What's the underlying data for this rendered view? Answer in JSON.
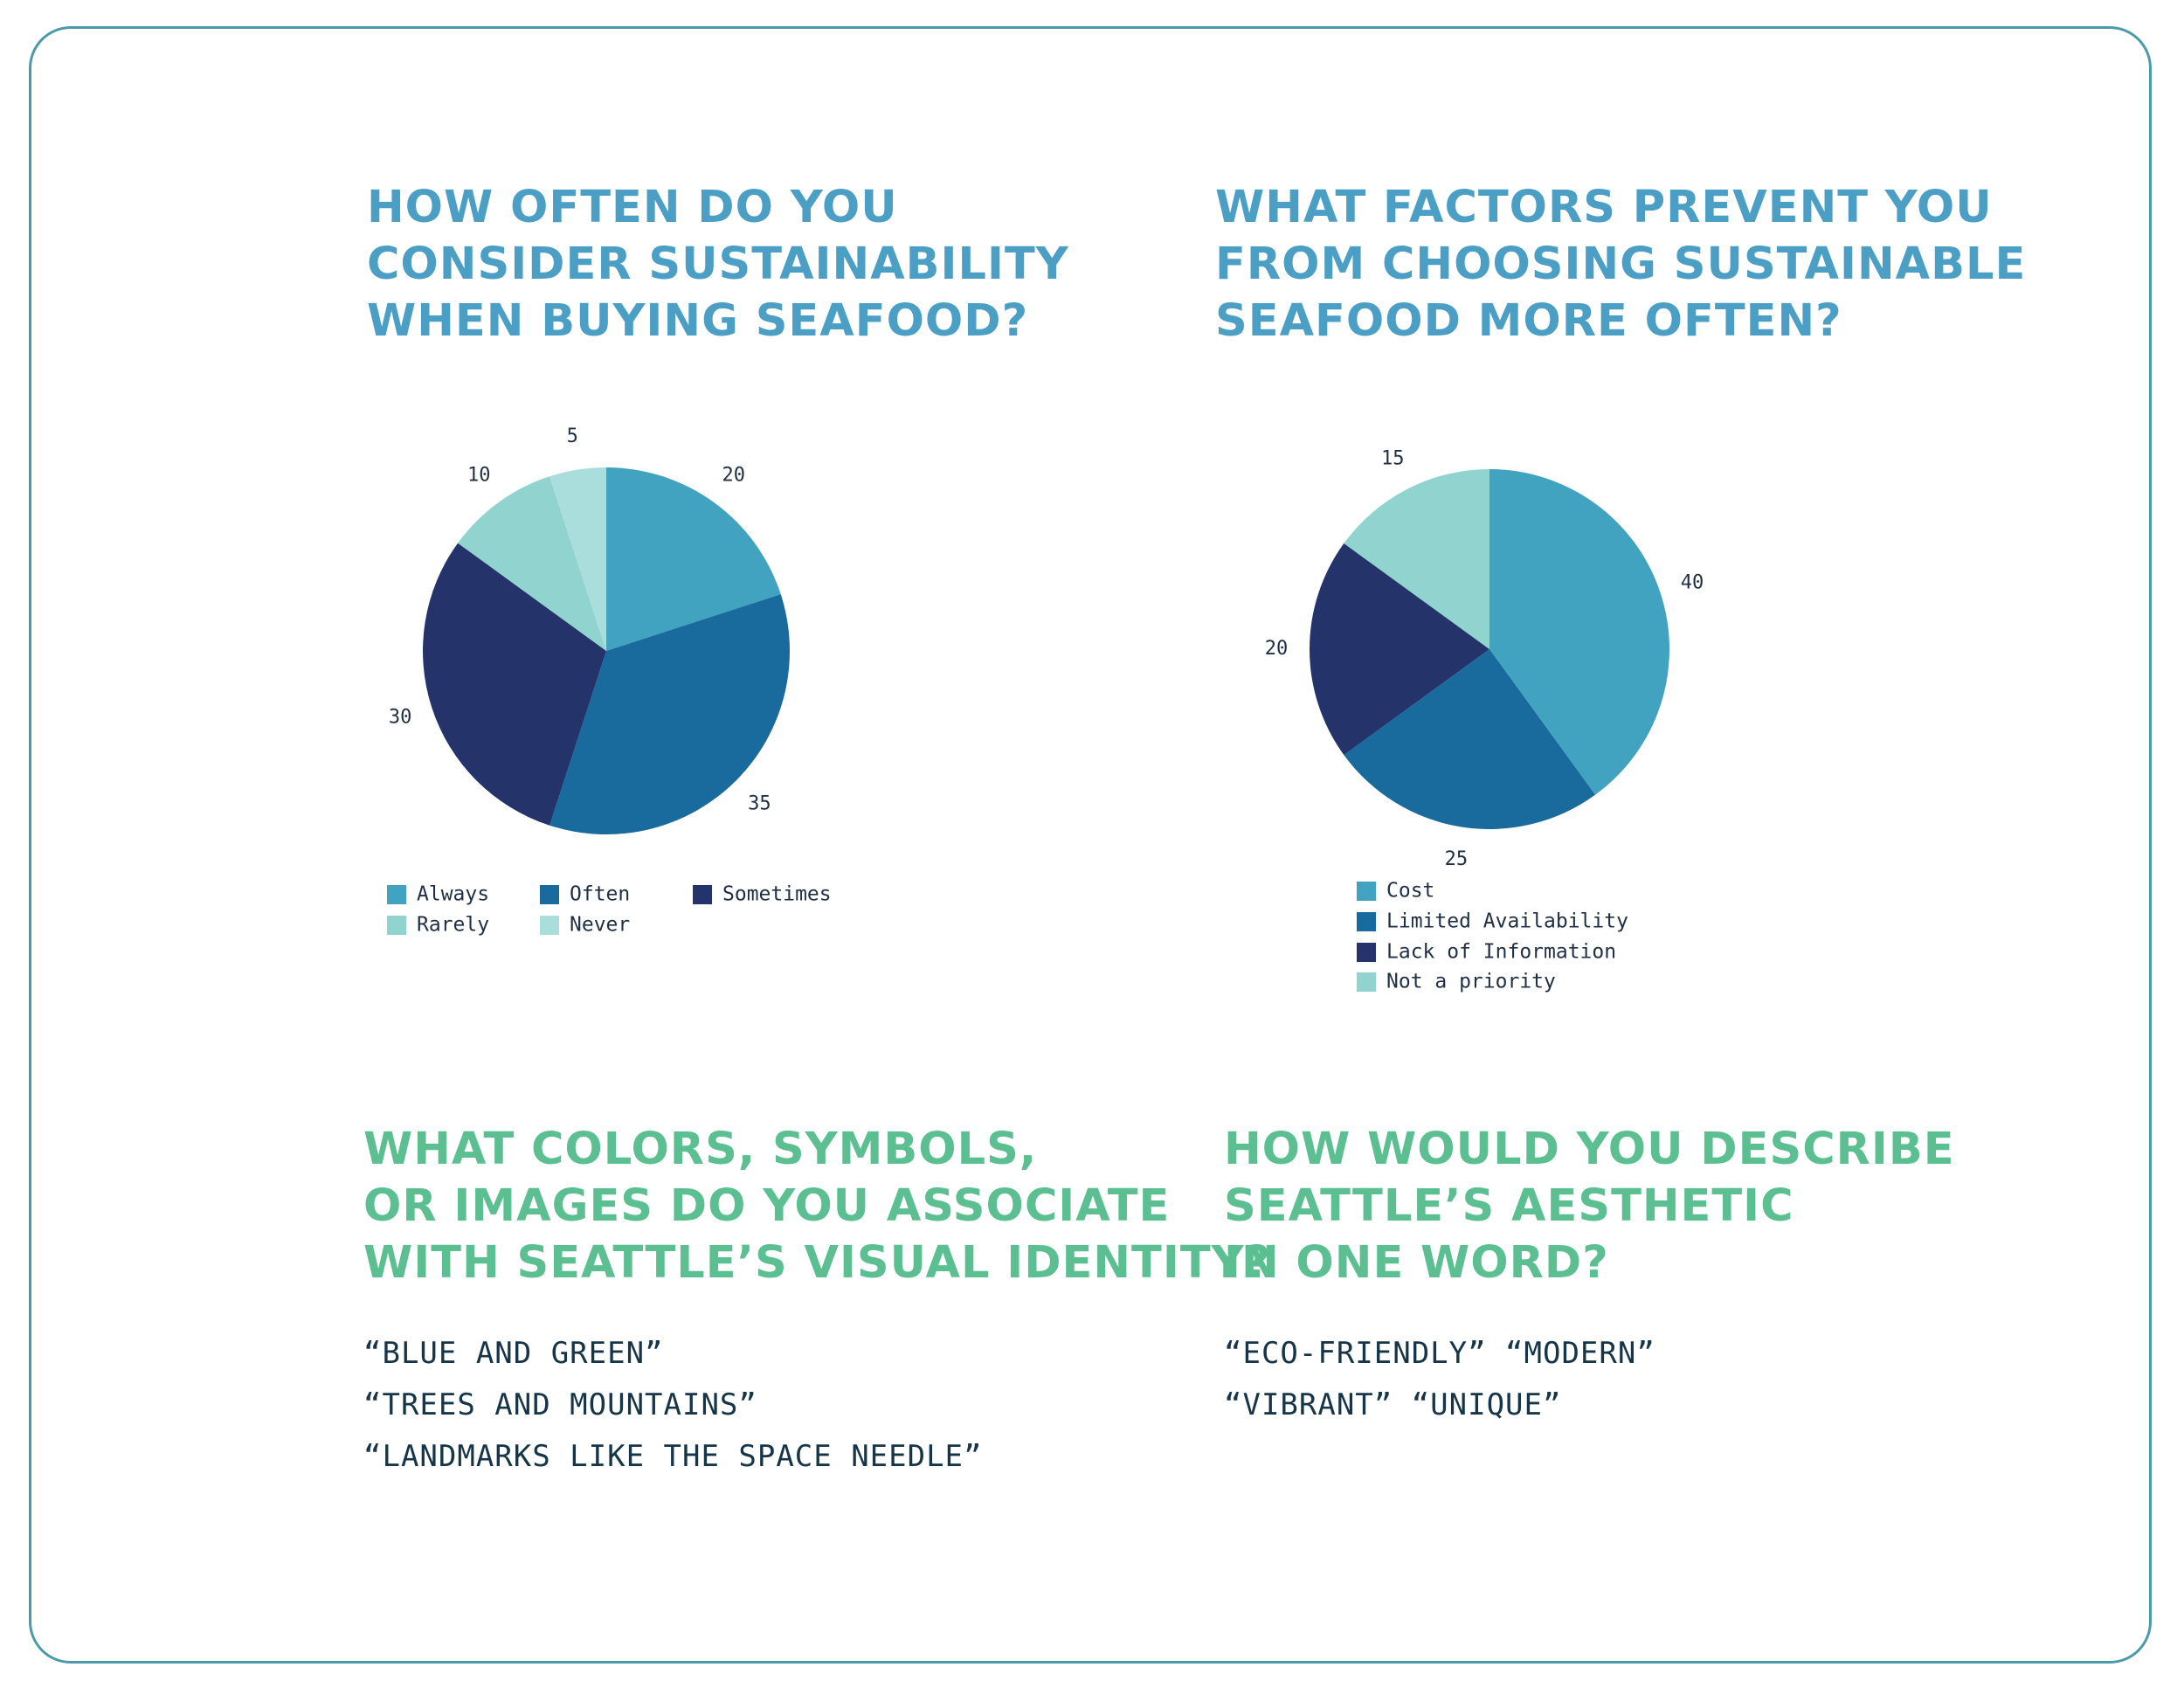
{
  "colors": {
    "frame": "#4b9aab",
    "heading_blue": "#4b9fc4",
    "heading_green": "#5bbf92",
    "answer_text": "#173548",
    "label_text": "#1f2f45"
  },
  "questions": [
    {
      "lines": [
        "How often do you",
        "consider sustainability",
        "when buying seafood?"
      ]
    },
    {
      "lines": [
        "What factors prevent you",
        "from choosing sustainable",
        "seafood more often?"
      ]
    },
    {
      "lines": [
        "What colors, symbols,",
        "or images do you associate",
        "with Seattle’s visual identity?"
      ]
    },
    {
      "lines": [
        "How would you describe",
        "Seattle’s aesthetic",
        "in one word?"
      ]
    }
  ],
  "answers": {
    "visual_identity": [
      "“BLUE AND GREEN”",
      "“TREES AND MOUNTAINS”",
      "“LANDMARKS LIKE THE SPACE NEEDLE”"
    ],
    "aesthetic": [
      "“ECO-FRIENDLY” “MODERN”",
      "“VIBRANT” “UNIQUE”"
    ]
  },
  "chart_data": [
    {
      "type": "pie",
      "title": "How often do you consider sustainability when buying seafood?",
      "categories": [
        "Always",
        "Often",
        "Sometimes",
        "Rarely",
        "Never"
      ],
      "values": [
        20,
        35,
        30,
        10,
        5
      ],
      "colors": [
        "#41a3bf",
        "#186b9c",
        "#24346b",
        "#90d3cf",
        "#a9dedd"
      ],
      "start": "12 o'clock",
      "direction": "clockwise",
      "legend_position": "bottom"
    },
    {
      "type": "pie",
      "title": "What factors prevent you from choosing sustainable seafood more often?",
      "categories": [
        "Cost",
        "Limited Availability",
        "Lack of Information",
        "Not a priority"
      ],
      "values": [
        40,
        25,
        20,
        15
      ],
      "colors": [
        "#41a3bf",
        "#186b9c",
        "#24346b",
        "#90d3cf"
      ],
      "start": "12 o'clock",
      "direction": "clockwise",
      "legend_position": "bottom"
    }
  ]
}
